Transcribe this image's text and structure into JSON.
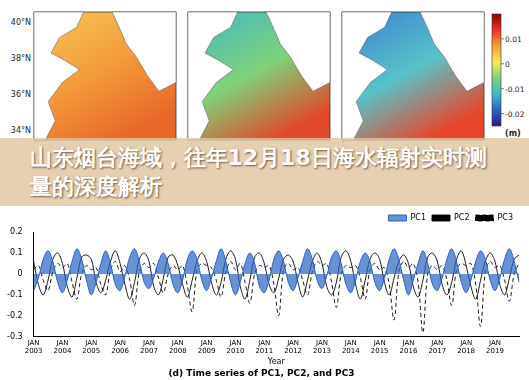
{
  "banner": {
    "title": "山东烟台海域，往年12月18日海水辐射实时测量的深度解析"
  },
  "maps": {
    "lat_labels": [
      "40°N",
      "38°N",
      "36°N",
      "34°N"
    ],
    "colorbar": {
      "unit": "(m)",
      "lim": [
        -0.025,
        0.02
      ],
      "ticks": [
        0.01,
        0,
        -0.01,
        -0.02
      ]
    }
  },
  "chart_data": {
    "type": "line",
    "title": "(d) Time series of PC1, PC2, and PC3",
    "x_label": "Year",
    "categories": [
      "JAN\n2003",
      null,
      null,
      null,
      null,
      null,
      "JAN\n2004",
      null,
      null,
      null,
      null,
      null,
      "JAN\n2005",
      null,
      null,
      null,
      null,
      null,
      "JAN\n2006",
      null,
      null,
      null,
      null,
      null,
      "JAN\n2007",
      null,
      null,
      null,
      null,
      null,
      "JAN\n2008",
      null,
      null,
      null,
      null,
      null,
      "JAN\n2009",
      null,
      null,
      null,
      null,
      null,
      "JAN\n2010",
      null,
      null,
      null,
      null,
      null,
      "JAN\n2011",
      null,
      null,
      null,
      null,
      null,
      "JAN\n2012",
      null,
      null,
      null,
      null,
      null,
      "JAN\n2013",
      null,
      null,
      null,
      null,
      null,
      "JAN\n2014",
      null,
      null,
      null,
      null,
      null,
      "JAN\n2015",
      null,
      null,
      null,
      null,
      null,
      "JAN\n2016",
      null,
      null,
      null,
      null,
      null,
      "JAN\n2017",
      null,
      null,
      null,
      null,
      null,
      "JAN\n2018",
      null,
      null,
      null,
      null,
      null,
      "JAN\n2019",
      null,
      null,
      null,
      null,
      null
    ],
    "series": [
      {
        "name": "PC1",
        "color": "#2a62c4",
        "type": "area",
        "line_style": "solid",
        "values": [
          -0.08,
          -0.02,
          0.07,
          0.11,
          0.06,
          -0.04,
          -0.09,
          -0.03,
          0.06,
          0.12,
          0.07,
          -0.03,
          -0.1,
          -0.04,
          0.05,
          0.11,
          0.05,
          -0.05,
          -0.08,
          -0.01,
          0.08,
          0.12,
          0.06,
          -0.04,
          -0.07,
          -0.02,
          0.06,
          0.1,
          0.05,
          -0.05,
          -0.09,
          -0.03,
          0.07,
          0.11,
          0.07,
          -0.03,
          -0.08,
          -0.02,
          0.06,
          0.12,
          0.06,
          -0.04,
          -0.1,
          -0.04,
          0.05,
          0.1,
          0.05,
          -0.06,
          -0.09,
          -0.03,
          0.07,
          0.11,
          0.06,
          -0.04,
          -0.08,
          -0.02,
          0.06,
          0.12,
          0.07,
          -0.03,
          -0.07,
          -0.01,
          0.08,
          0.11,
          0.05,
          -0.05,
          -0.09,
          -0.03,
          0.06,
          0.1,
          0.06,
          -0.04,
          -0.08,
          -0.02,
          0.07,
          0.12,
          0.07,
          -0.03,
          -0.1,
          -0.03,
          0.05,
          0.11,
          0.05,
          -0.05,
          -0.08,
          -0.02,
          0.07,
          0.12,
          0.06,
          -0.04,
          -0.09,
          -0.03,
          0.06,
          0.11,
          0.07,
          -0.03,
          -0.08,
          -0.02,
          0.07,
          0.12,
          0.06,
          -0.04
        ]
      },
      {
        "name": "PC2",
        "color": "#000000",
        "type": "line",
        "line_style": "solid",
        "values": [
          0.06,
          -0.05,
          -0.1,
          -0.03,
          0.07,
          0.1,
          0.05,
          -0.06,
          -0.11,
          -0.02,
          0.08,
          0.09,
          0.07,
          -0.04,
          -0.09,
          -0.03,
          0.06,
          0.11,
          0.05,
          -0.05,
          -0.12,
          -0.04,
          0.07,
          0.1,
          0.06,
          -0.06,
          -0.1,
          -0.02,
          0.08,
          0.09,
          0.04,
          -0.05,
          -0.11,
          -0.03,
          0.06,
          0.1,
          0.06,
          -0.04,
          -0.1,
          -0.04,
          0.07,
          0.11,
          0.07,
          -0.06,
          -0.12,
          -0.03,
          0.08,
          0.1,
          0.05,
          -0.05,
          -0.09,
          -0.02,
          0.07,
          0.09,
          0.06,
          -0.04,
          -0.11,
          -0.03,
          0.06,
          0.1,
          0.05,
          -0.06,
          -0.1,
          -0.04,
          0.08,
          0.11,
          0.06,
          -0.05,
          -0.12,
          -0.03,
          0.07,
          0.1,
          0.07,
          -0.04,
          -0.1,
          -0.02,
          0.06,
          0.09,
          0.05,
          -0.06,
          -0.11,
          -0.03,
          0.08,
          0.1,
          0.06,
          -0.05,
          -0.1,
          -0.04,
          0.07,
          0.11,
          0.04,
          -0.06,
          -0.12,
          -0.03,
          0.06,
          0.1,
          0.06,
          -0.05,
          -0.1,
          -0.02,
          0.07,
          0.09
        ]
      },
      {
        "name": "PC3",
        "color": "#000000",
        "type": "line",
        "line_style": "dashed",
        "values": [
          0.02,
          0.04,
          -0.03,
          -0.08,
          0.01,
          0.05,
          0.03,
          0.05,
          -0.04,
          -0.12,
          0.0,
          0.04,
          0.02,
          0.03,
          -0.05,
          -0.1,
          0.02,
          0.06,
          0.01,
          0.04,
          -0.03,
          -0.15,
          0.01,
          0.05,
          0.03,
          0.05,
          -0.02,
          -0.09,
          0.0,
          0.04,
          0.02,
          0.04,
          -0.06,
          -0.18,
          0.02,
          0.05,
          0.04,
          0.03,
          -0.03,
          -0.11,
          0.01,
          0.06,
          0.02,
          0.05,
          -0.04,
          -0.14,
          0.0,
          0.04,
          0.03,
          0.04,
          -0.05,
          -0.2,
          0.02,
          0.05,
          0.02,
          0.03,
          -0.03,
          -0.1,
          0.01,
          0.06,
          0.04,
          0.05,
          -0.04,
          -0.16,
          0.0,
          0.04,
          0.03,
          0.04,
          -0.02,
          -0.12,
          0.02,
          0.05,
          0.02,
          0.03,
          -0.05,
          -0.22,
          0.01,
          0.06,
          0.03,
          0.05,
          -0.04,
          -0.28,
          0.0,
          0.04,
          0.02,
          0.04,
          -0.03,
          -0.15,
          0.02,
          0.05,
          0.04,
          0.05,
          -0.05,
          -0.25,
          0.01,
          0.06,
          0.03,
          0.04,
          -0.03,
          -0.13,
          0.0,
          0.05
        ]
      }
    ],
    "ylim": [
      -0.3,
      0.2
    ],
    "yticks": [
      -0.3,
      -0.2,
      -0.1,
      0,
      0.1,
      0.2
    ],
    "grid": false,
    "legend": "top-right"
  }
}
